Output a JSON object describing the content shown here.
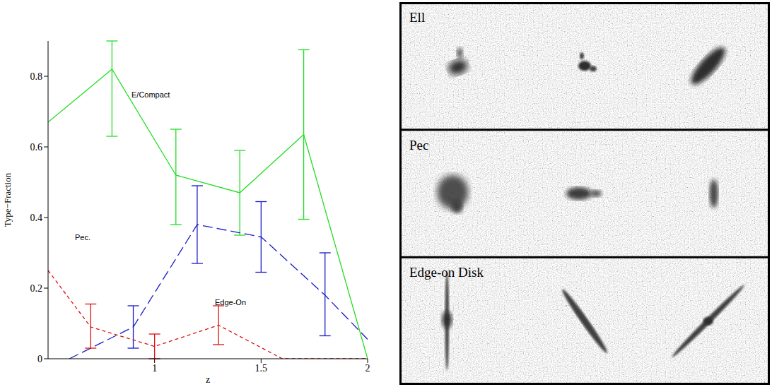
{
  "chart_data": {
    "type": "line",
    "x_label": "z",
    "y_label": "Type−Fraction",
    "xlim": [
      0.5,
      2
    ],
    "xticks": [
      1,
      1.5,
      2
    ],
    "ylim": [
      0,
      0.9
    ],
    "yticks": [
      0,
      0.2,
      0.4,
      0.6,
      0.8
    ],
    "grid": false,
    "series": [
      {
        "name": "E/Compact",
        "color": "#22dd22",
        "line_style": "solid",
        "x": [
          0.5,
          0.8,
          1.1,
          1.4,
          1.7,
          2.0
        ],
        "values": [
          0.67,
          0.82,
          0.52,
          0.47,
          0.635,
          0.0
        ],
        "error_low": [
          null,
          0.63,
          0.38,
          0.35,
          0.395,
          null
        ],
        "error_high": [
          null,
          0.9,
          0.65,
          0.59,
          0.875,
          null
        ]
      },
      {
        "name": "Pec.",
        "color": "#1a1acc",
        "line_style": "long_dashed",
        "x": [
          0.6,
          0.9,
          1.2,
          1.5,
          1.8,
          2.0
        ],
        "values": [
          0.0,
          0.09,
          0.38,
          0.345,
          0.18,
          0.055
        ],
        "error_low": [
          null,
          0.03,
          0.27,
          0.245,
          0.065,
          null
        ],
        "error_high": [
          null,
          0.15,
          0.49,
          0.445,
          0.3,
          null
        ]
      },
      {
        "name": "Edge-On",
        "color": "#dd1111",
        "line_style": "dashed",
        "x": [
          0.5,
          0.7,
          1.0,
          1.3,
          1.6,
          2.0
        ],
        "values": [
          0.25,
          0.09,
          0.035,
          0.095,
          0.0,
          0.0
        ],
        "error_low": [
          null,
          0.03,
          0.0,
          0.04,
          null,
          null
        ],
        "error_high": [
          null,
          0.155,
          0.07,
          0.15,
          null,
          null
        ]
      }
    ]
  },
  "image_panel": {
    "columns": 3,
    "rows": [
      {
        "label": "Ell"
      },
      {
        "label": "Pec"
      },
      {
        "label": "Edge-on Disk"
      }
    ]
  }
}
